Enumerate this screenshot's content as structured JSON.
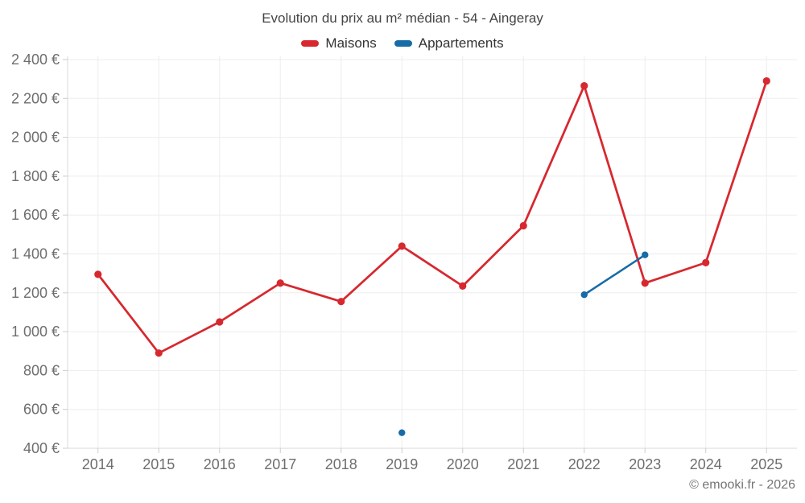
{
  "header": {
    "title": "Evolution du prix au m² médian - 54 - Aingeray"
  },
  "legend": [
    {
      "label": "Maisons",
      "color": "#d7282f"
    },
    {
      "label": "Appartements",
      "color": "#176ba6"
    }
  ],
  "footer": {
    "copyright": "© emooki.fr - 2026"
  },
  "chart_data": {
    "type": "line",
    "title": "Evolution du prix au m² médian - 54 - Aingeray",
    "categories": [
      "2014",
      "2015",
      "2016",
      "2017",
      "2018",
      "2019",
      "2020",
      "2021",
      "2022",
      "2023",
      "2024",
      "2025"
    ],
    "series": [
      {
        "name": "Maisons",
        "color": "#d7282f",
        "line_width": 2.75,
        "point_radius": 4.6,
        "values": [
          1295,
          890,
          1050,
          1250,
          1155,
          1440,
          1235,
          1545,
          2265,
          1250,
          1355,
          2290
        ]
      },
      {
        "name": "Appartements",
        "color": "#176ba6",
        "line_width": 2.5,
        "point_radius": 4.2,
        "values": [
          null,
          null,
          null,
          null,
          null,
          480,
          null,
          null,
          1190,
          1395,
          null,
          null
        ]
      }
    ],
    "ylim": [
      400,
      2400
    ],
    "yticks": [
      {
        "value": 400,
        "label": "400 €"
      },
      {
        "value": 600,
        "label": "600 €"
      },
      {
        "value": 800,
        "label": "800 €"
      },
      {
        "value": 1000,
        "label": "1 000 €"
      },
      {
        "value": 1200,
        "label": "1 200 €"
      },
      {
        "value": 1400,
        "label": "1 400 €"
      },
      {
        "value": 1600,
        "label": "1 600 €"
      },
      {
        "value": 1800,
        "label": "1 800 €"
      },
      {
        "value": 2000,
        "label": "2 000 €"
      },
      {
        "value": 2200,
        "label": "2 200 €"
      },
      {
        "value": 2400,
        "label": "2 400 €"
      }
    ],
    "grid": true,
    "legend_position": "top",
    "style": {
      "grid_color": "#ededed",
      "axis_color": "#d9d9d9",
      "tick_color": "#cccccc",
      "tick_label_color": "#6e6e6e"
    }
  }
}
